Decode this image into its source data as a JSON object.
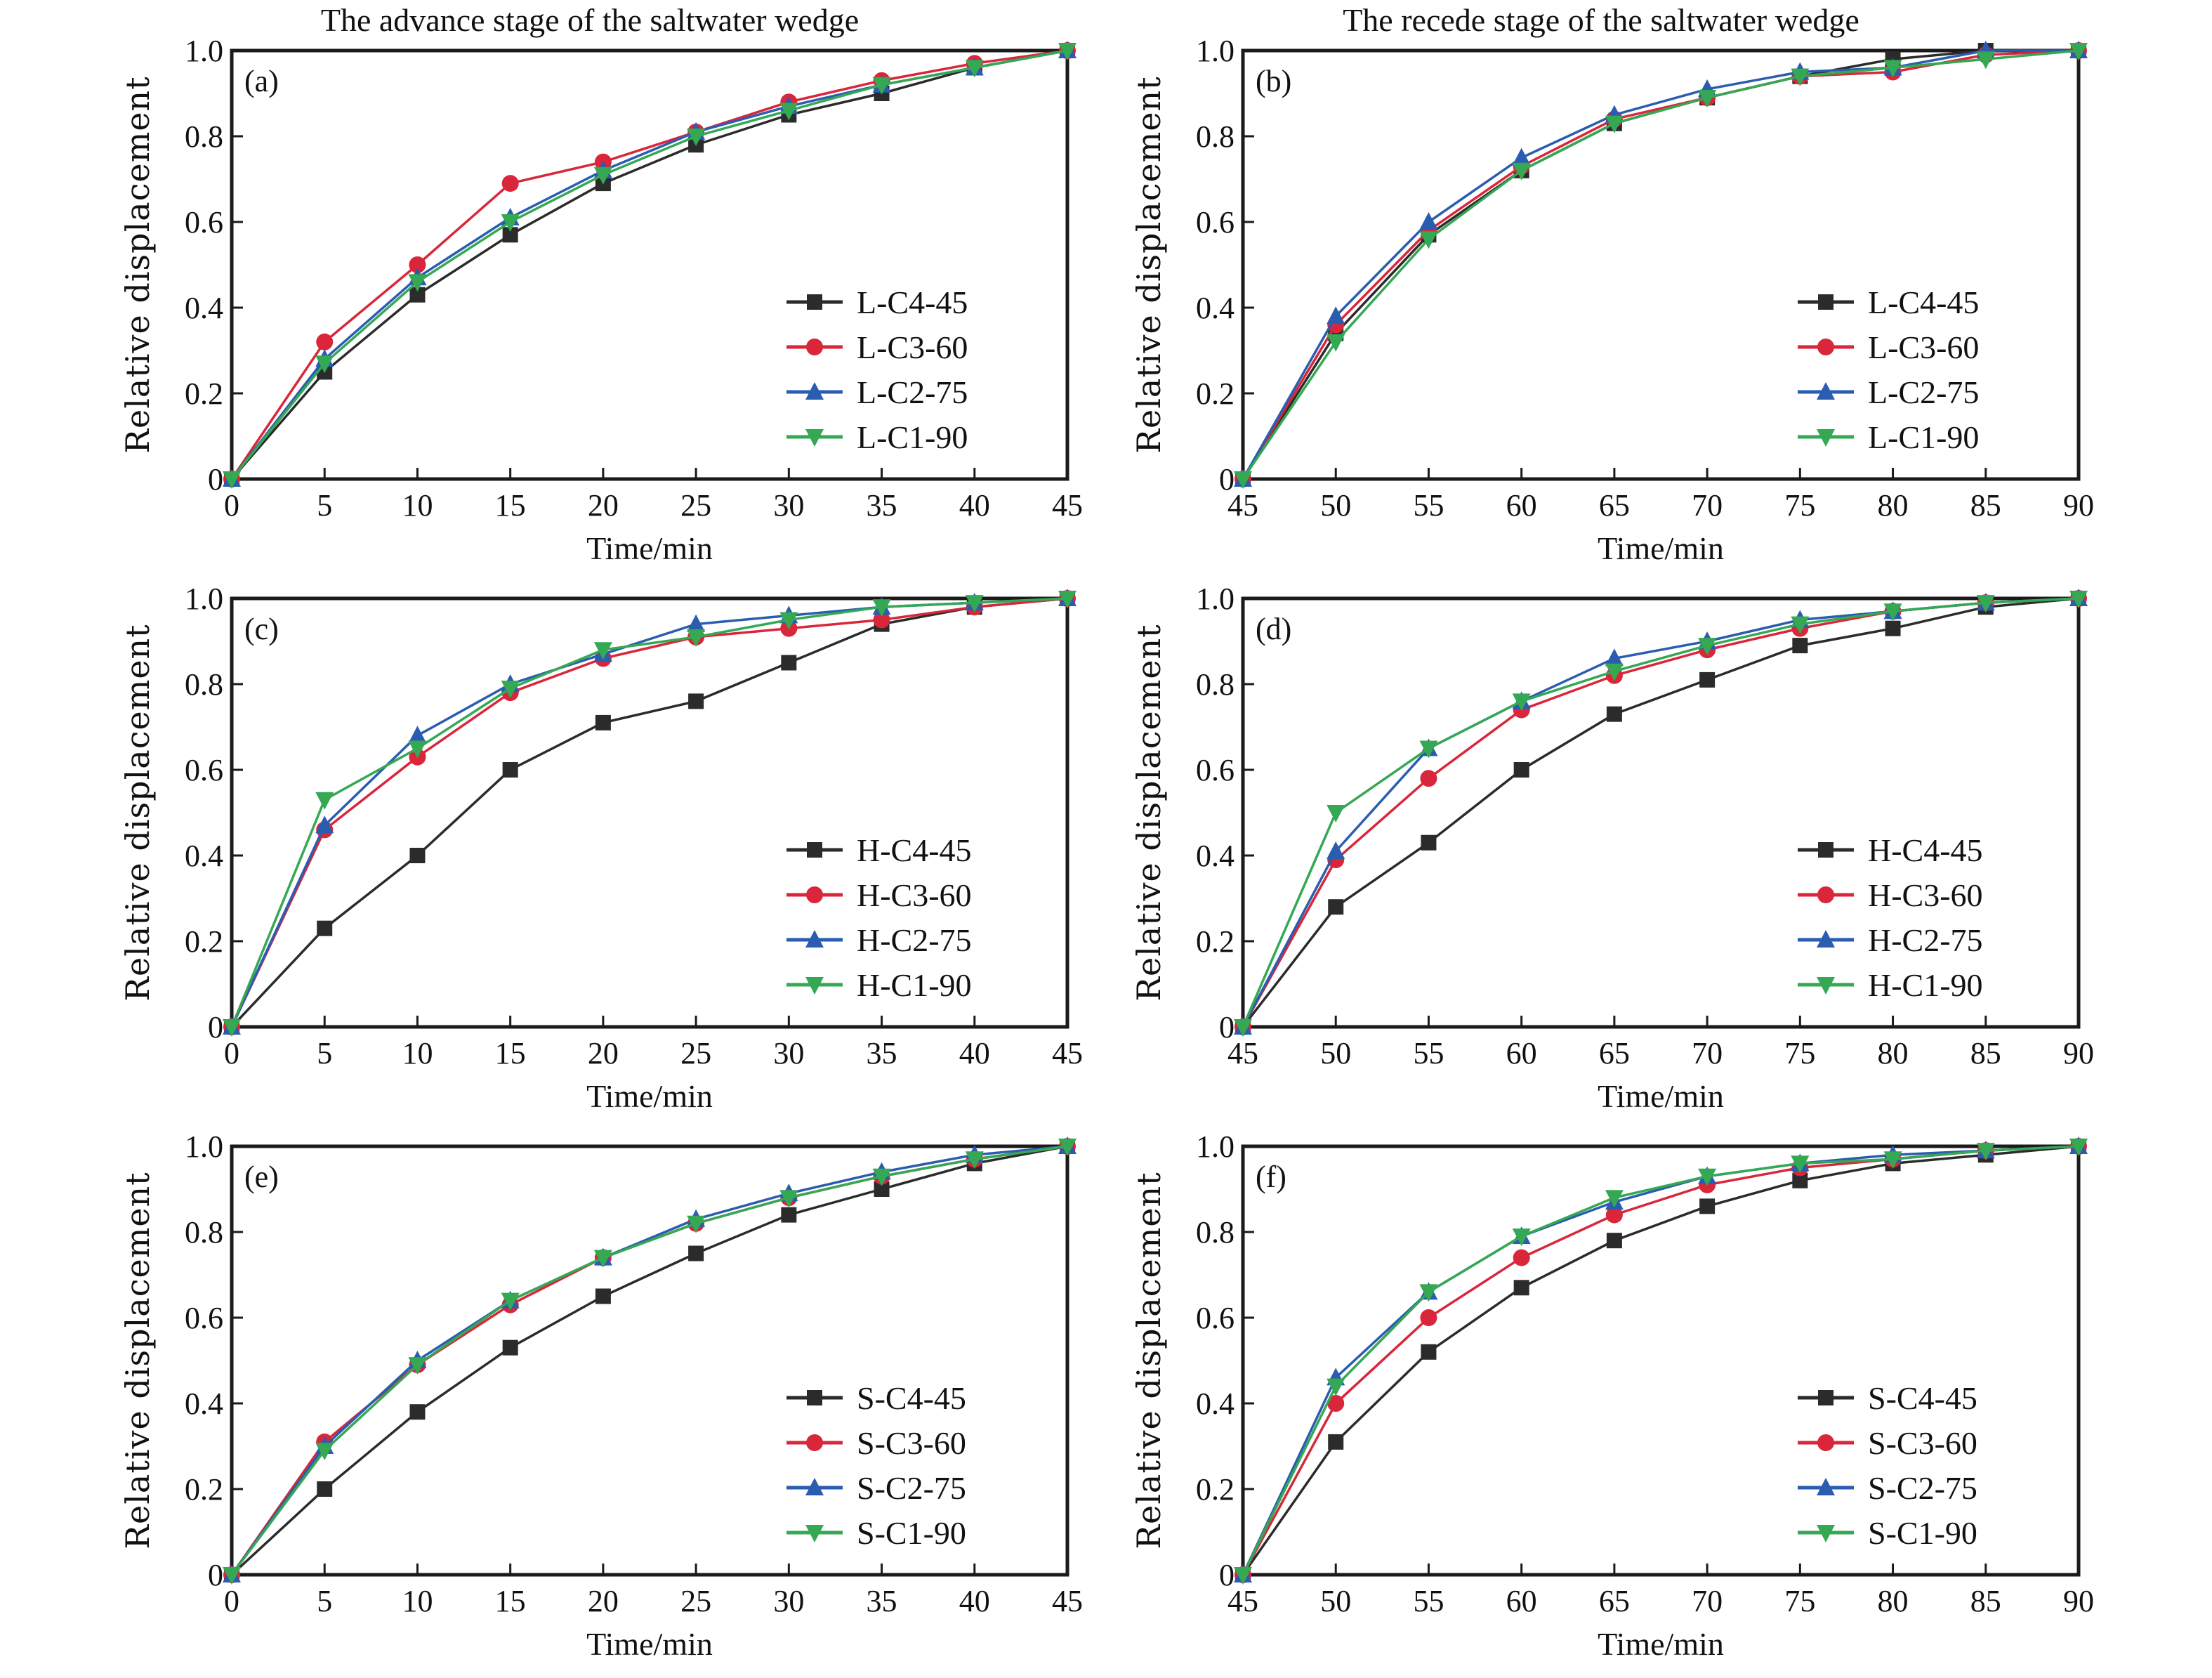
{
  "figure": {
    "column_titles": [
      "The advance stage of the saltwater wedge",
      "The recede stage of the saltwater wedge"
    ]
  },
  "colors": {
    "C4-45": "#2b2b2b",
    "C3-60": "#d9263a",
    "C2-75": "#2a5db0",
    "C1-90": "#34a853"
  },
  "chart_data": [
    {
      "type": "line",
      "panel": "(a)",
      "title": "The advance stage of the saltwater wedge",
      "xlabel": "Time/min",
      "ylabel": "Relative displacement",
      "x": [
        0,
        5,
        10,
        15,
        20,
        25,
        30,
        35,
        40,
        45
      ],
      "xlim": [
        0,
        45
      ],
      "ylim": [
        0,
        1.0
      ],
      "xticks": [
        "0",
        "5",
        "10",
        "15",
        "20",
        "25",
        "30",
        "35",
        "40",
        "45"
      ],
      "yticks": [
        "0",
        "0.2",
        "0.4",
        "0.6",
        "0.8",
        "1.0"
      ],
      "legend_position": "lower-right",
      "series": [
        {
          "name": "L-C4-45",
          "key": "C4-45",
          "marker": "square",
          "values": [
            0,
            0.25,
            0.43,
            0.57,
            0.69,
            0.78,
            0.85,
            0.9,
            0.96,
            1.0
          ]
        },
        {
          "name": "L-C3-60",
          "key": "C3-60",
          "marker": "circle",
          "values": [
            0,
            0.32,
            0.5,
            0.69,
            0.74,
            0.81,
            0.88,
            0.93,
            0.97,
            1.0
          ]
        },
        {
          "name": "L-C2-75",
          "key": "C2-75",
          "marker": "triangle-up",
          "values": [
            0,
            0.28,
            0.47,
            0.61,
            0.72,
            0.81,
            0.87,
            0.92,
            0.96,
            1.0
          ]
        },
        {
          "name": "L-C1-90",
          "key": "C1-90",
          "marker": "triangle-down",
          "values": [
            0,
            0.27,
            0.46,
            0.6,
            0.71,
            0.8,
            0.86,
            0.92,
            0.96,
            1.0
          ]
        }
      ]
    },
    {
      "type": "line",
      "panel": "(b)",
      "title": "The recede stage of the saltwater wedge",
      "xlabel": "Time/min",
      "ylabel": "Relative displacement",
      "x": [
        45,
        50,
        55,
        60,
        65,
        70,
        75,
        80,
        85,
        90
      ],
      "xlim": [
        45,
        90
      ],
      "ylim": [
        0,
        1.0
      ],
      "xticks": [
        "45",
        "50",
        "55",
        "60",
        "65",
        "70",
        "75",
        "80",
        "85",
        "90"
      ],
      "yticks": [
        "0",
        "0.2",
        "0.4",
        "0.6",
        "0.8",
        "1.0"
      ],
      "legend_position": "lower-right",
      "series": [
        {
          "name": "L-C4-45",
          "key": "C4-45",
          "marker": "square",
          "values": [
            0,
            0.34,
            0.57,
            0.72,
            0.83,
            0.89,
            0.94,
            0.98,
            1.0,
            1.0
          ]
        },
        {
          "name": "L-C3-60",
          "key": "C3-60",
          "marker": "circle",
          "values": [
            0,
            0.36,
            0.58,
            0.73,
            0.84,
            0.89,
            0.94,
            0.95,
            0.99,
            1.0
          ]
        },
        {
          "name": "L-C2-75",
          "key": "C2-75",
          "marker": "triangle-up",
          "values": [
            0,
            0.38,
            0.6,
            0.75,
            0.85,
            0.91,
            0.95,
            0.96,
            1.0,
            1.0
          ]
        },
        {
          "name": "L-C1-90",
          "key": "C1-90",
          "marker": "triangle-down",
          "values": [
            0,
            0.32,
            0.56,
            0.72,
            0.83,
            0.89,
            0.94,
            0.96,
            0.98,
            1.0
          ]
        }
      ]
    },
    {
      "type": "line",
      "panel": "(c)",
      "title": "",
      "xlabel": "Time/min",
      "ylabel": "Relative displacement",
      "x": [
        0,
        5,
        10,
        15,
        20,
        25,
        30,
        35,
        40,
        45
      ],
      "xlim": [
        0,
        45
      ],
      "ylim": [
        0,
        1.0
      ],
      "xticks": [
        "0",
        "5",
        "10",
        "15",
        "20",
        "25",
        "30",
        "35",
        "40",
        "45"
      ],
      "yticks": [
        "0",
        "0.2",
        "0.4",
        "0.6",
        "0.8",
        "1.0"
      ],
      "legend_position": "lower-right",
      "series": [
        {
          "name": "H-C4-45",
          "key": "C4-45",
          "marker": "square",
          "values": [
            0,
            0.23,
            0.4,
            0.6,
            0.71,
            0.76,
            0.85,
            0.94,
            0.98,
            1.0
          ]
        },
        {
          "name": "H-C3-60",
          "key": "C3-60",
          "marker": "circle",
          "values": [
            0,
            0.46,
            0.63,
            0.78,
            0.86,
            0.91,
            0.93,
            0.95,
            0.98,
            1.0
          ]
        },
        {
          "name": "H-C2-75",
          "key": "C2-75",
          "marker": "triangle-up",
          "values": [
            0,
            0.47,
            0.68,
            0.8,
            0.87,
            0.94,
            0.96,
            0.98,
            0.99,
            1.0
          ]
        },
        {
          "name": "H-C1-90",
          "key": "C1-90",
          "marker": "triangle-down",
          "values": [
            0,
            0.53,
            0.65,
            0.79,
            0.88,
            0.91,
            0.95,
            0.98,
            0.99,
            1.0
          ]
        }
      ]
    },
    {
      "type": "line",
      "panel": "(d)",
      "title": "",
      "xlabel": "Time/min",
      "ylabel": "Relative displacement",
      "x": [
        45,
        50,
        55,
        60,
        65,
        70,
        75,
        80,
        85,
        90
      ],
      "xlim": [
        45,
        90
      ],
      "ylim": [
        0,
        1.0
      ],
      "xticks": [
        "45",
        "50",
        "55",
        "60",
        "65",
        "70",
        "75",
        "80",
        "85",
        "90"
      ],
      "yticks": [
        "0",
        "0.2",
        "0.4",
        "0.6",
        "0.8",
        "1.0"
      ],
      "legend_position": "lower-right",
      "series": [
        {
          "name": "H-C4-45",
          "key": "C4-45",
          "marker": "square",
          "values": [
            0,
            0.28,
            0.43,
            0.6,
            0.73,
            0.81,
            0.89,
            0.93,
            0.98,
            1.0
          ]
        },
        {
          "name": "H-C3-60",
          "key": "C3-60",
          "marker": "circle",
          "values": [
            0,
            0.39,
            0.58,
            0.74,
            0.82,
            0.88,
            0.93,
            0.97,
            0.99,
            1.0
          ]
        },
        {
          "name": "H-C2-75",
          "key": "C2-75",
          "marker": "triangle-up",
          "values": [
            0,
            0.41,
            0.65,
            0.76,
            0.86,
            0.9,
            0.95,
            0.97,
            0.99,
            1.0
          ]
        },
        {
          "name": "H-C1-90",
          "key": "C1-90",
          "marker": "triangle-down",
          "values": [
            0,
            0.5,
            0.65,
            0.76,
            0.83,
            0.89,
            0.94,
            0.97,
            0.99,
            1.0
          ]
        }
      ]
    },
    {
      "type": "line",
      "panel": "(e)",
      "title": "",
      "xlabel": "Time/min",
      "ylabel": "Relative displacement",
      "x": [
        0,
        5,
        10,
        15,
        20,
        25,
        30,
        35,
        40,
        45
      ],
      "xlim": [
        0,
        45
      ],
      "ylim": [
        0,
        1.0
      ],
      "xticks": [
        "0",
        "5",
        "10",
        "15",
        "20",
        "25",
        "30",
        "35",
        "40",
        "45"
      ],
      "yticks": [
        "0",
        "0.2",
        "0.4",
        "0.6",
        "0.8",
        "1.0"
      ],
      "legend_position": "lower-right",
      "series": [
        {
          "name": "S-C4-45",
          "key": "C4-45",
          "marker": "square",
          "values": [
            0,
            0.2,
            0.38,
            0.53,
            0.65,
            0.75,
            0.84,
            0.9,
            0.96,
            1.0
          ]
        },
        {
          "name": "S-C3-60",
          "key": "C3-60",
          "marker": "circle",
          "values": [
            0,
            0.31,
            0.49,
            0.63,
            0.74,
            0.82,
            0.88,
            0.93,
            0.97,
            1.0
          ]
        },
        {
          "name": "S-C2-75",
          "key": "C2-75",
          "marker": "triangle-up",
          "values": [
            0,
            0.3,
            0.5,
            0.64,
            0.74,
            0.83,
            0.89,
            0.94,
            0.98,
            1.0
          ]
        },
        {
          "name": "S-C1-90",
          "key": "C1-90",
          "marker": "triangle-down",
          "values": [
            0,
            0.29,
            0.49,
            0.64,
            0.74,
            0.82,
            0.88,
            0.93,
            0.97,
            1.0
          ]
        }
      ]
    },
    {
      "type": "line",
      "panel": "(f)",
      "title": "",
      "xlabel": "Time/min",
      "ylabel": "Relative displacement",
      "x": [
        45,
        50,
        55,
        60,
        65,
        70,
        75,
        80,
        85,
        90
      ],
      "xlim": [
        45,
        90
      ],
      "ylim": [
        0,
        1.0
      ],
      "xticks": [
        "45",
        "50",
        "55",
        "60",
        "65",
        "70",
        "75",
        "80",
        "85",
        "90"
      ],
      "yticks": [
        "0",
        "0.2",
        "0.4",
        "0.6",
        "0.8",
        "1.0"
      ],
      "legend_position": "lower-right",
      "series": [
        {
          "name": "S-C4-45",
          "key": "C4-45",
          "marker": "square",
          "values": [
            0,
            0.31,
            0.52,
            0.67,
            0.78,
            0.86,
            0.92,
            0.96,
            0.98,
            1.0
          ]
        },
        {
          "name": "S-C3-60",
          "key": "C3-60",
          "marker": "circle",
          "values": [
            0,
            0.4,
            0.6,
            0.74,
            0.84,
            0.91,
            0.95,
            0.97,
            0.99,
            1.0
          ]
        },
        {
          "name": "S-C2-75",
          "key": "C2-75",
          "marker": "triangle-up",
          "values": [
            0,
            0.46,
            0.66,
            0.79,
            0.87,
            0.93,
            0.96,
            0.98,
            0.99,
            1.0
          ]
        },
        {
          "name": "S-C1-90",
          "key": "C1-90",
          "marker": "triangle-down",
          "values": [
            0,
            0.44,
            0.66,
            0.79,
            0.88,
            0.93,
            0.96,
            0.97,
            0.99,
            1.0
          ]
        }
      ]
    }
  ]
}
